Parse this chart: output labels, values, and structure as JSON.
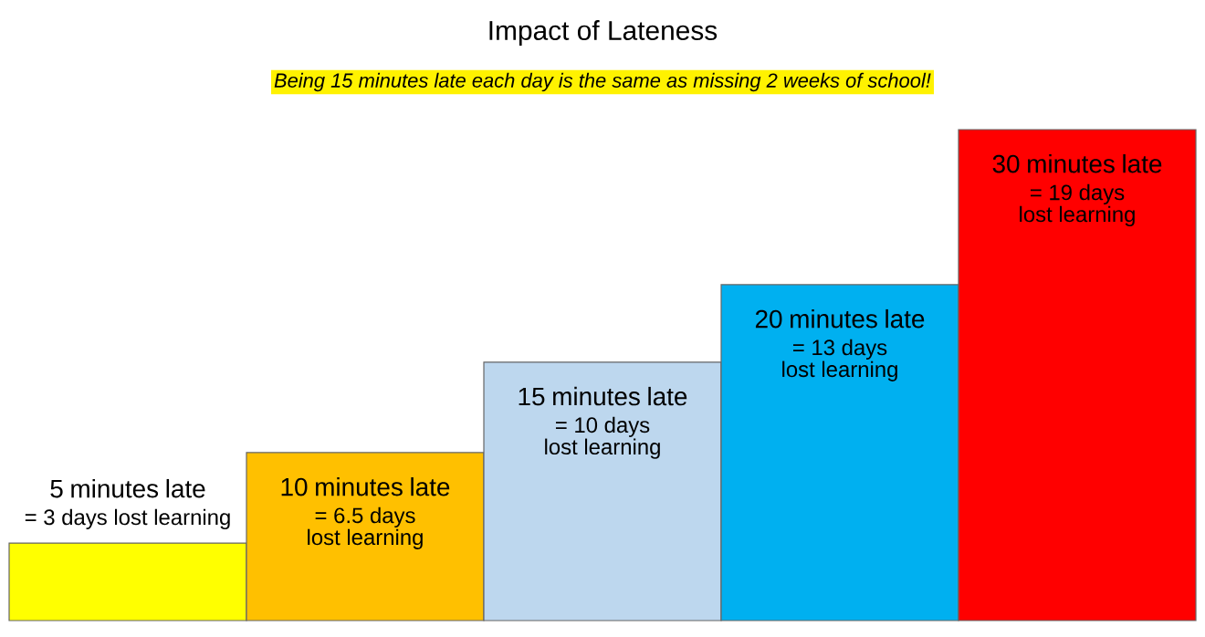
{
  "chart_data": {
    "type": "bar",
    "title": "Impact of Lateness",
    "subtitle": "Being 15 minutes late each day is the same as missing 2 weeks of school!",
    "categories": [
      "5 minutes late",
      "10 minutes late",
      "15 minutes late",
      "20 minutes late",
      "30 minutes late"
    ],
    "values": [
      3,
      6.5,
      10,
      13,
      19
    ],
    "value_labels": [
      "= 3 days lost learning",
      "= 6.5 days lost learning",
      "= 10 days lost learning",
      "= 13 days lost learning",
      "= 19 days lost learning"
    ],
    "colors": [
      "#ffff00",
      "#ffc000",
      "#bdd7ee",
      "#00b0f0",
      "#ff0000"
    ]
  }
}
